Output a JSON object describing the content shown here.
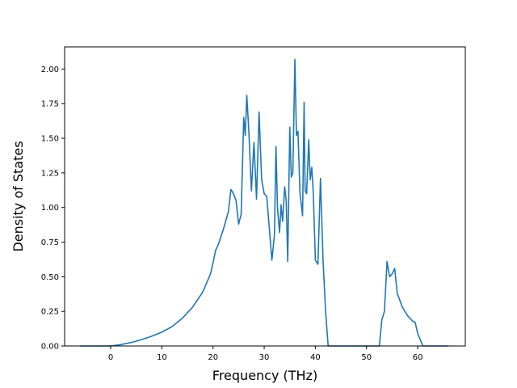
{
  "chart_data": {
    "type": "line",
    "title": "",
    "xlabel": "Frequency (THz)",
    "ylabel": "Density of States",
    "xlim": [
      -9,
      69.3
    ],
    "ylim": [
      0,
      2.16
    ],
    "xticks": [
      0,
      10,
      20,
      30,
      40,
      50,
      60
    ],
    "xtick_labels": [
      "0",
      "10",
      "20",
      "30",
      "40",
      "50",
      "60"
    ],
    "yticks": [
      0,
      0.25,
      0.5,
      0.75,
      1.0,
      1.25,
      1.5,
      1.75,
      2.0
    ],
    "ytick_labels": [
      "0.00",
      "0.25",
      "0.50",
      "0.75",
      "1.00",
      "1.25",
      "1.50",
      "1.75",
      "2.00"
    ],
    "grid": false,
    "line_color": "#1f77b4",
    "series": [
      {
        "x": [
          -6.0,
          0.0,
          2.0,
          4.0,
          6.0,
          8.0,
          10.0,
          12.0,
          14.0,
          16.0,
          18.0,
          19.5,
          20.0,
          20.5,
          21.0,
          22.0,
          23.0,
          23.5,
          24.0,
          24.5,
          25.0,
          25.5,
          26.0,
          26.3,
          26.6,
          27.0,
          27.5,
          28.0,
          28.5,
          29.0,
          29.5,
          30.0,
          30.5,
          31.0,
          31.5,
          32.0,
          32.3,
          32.6,
          33.0,
          33.3,
          33.6,
          34.0,
          34.3,
          34.6,
          35.0,
          35.3,
          35.6,
          36.0,
          36.3,
          36.6,
          37.0,
          37.5,
          37.8,
          38.0,
          38.3,
          38.7,
          39.0,
          39.3,
          39.6,
          40.0,
          40.5,
          41.0,
          41.5,
          42.0,
          42.5,
          43.0,
          45.0,
          50.0,
          52.5,
          53.0,
          53.5,
          54.0,
          54.5,
          55.0,
          55.5,
          56.0,
          57.0,
          58.0,
          59.0,
          59.5,
          60.0,
          61.0,
          63.0,
          66.0
        ],
        "y": [
          0.0,
          0.0,
          0.01,
          0.025,
          0.045,
          0.07,
          0.1,
          0.14,
          0.2,
          0.28,
          0.39,
          0.52,
          0.6,
          0.69,
          0.73,
          0.84,
          0.97,
          1.13,
          1.1,
          1.05,
          0.88,
          0.95,
          1.65,
          1.52,
          1.81,
          1.55,
          1.12,
          1.47,
          1.06,
          1.69,
          1.2,
          1.1,
          1.08,
          0.85,
          0.62,
          0.8,
          1.44,
          1.0,
          0.82,
          1.02,
          0.9,
          1.15,
          1.05,
          0.61,
          1.58,
          1.22,
          1.25,
          2.07,
          1.52,
          1.55,
          1.1,
          0.94,
          1.76,
          1.12,
          1.1,
          1.49,
          1.2,
          1.29,
          1.1,
          0.62,
          0.59,
          1.21,
          0.62,
          0.25,
          0.0,
          0.0,
          0.0,
          0.0,
          0.0,
          0.19,
          0.25,
          0.61,
          0.5,
          0.52,
          0.56,
          0.38,
          0.28,
          0.22,
          0.18,
          0.17,
          0.09,
          0.0,
          0.0,
          0.0
        ]
      }
    ]
  }
}
